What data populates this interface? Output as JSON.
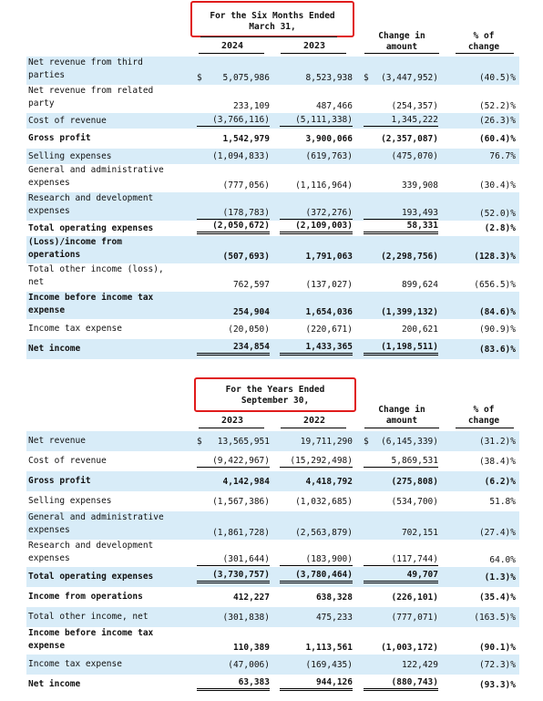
{
  "section1": {
    "period_line1": "For the Six Months Ended",
    "period_line2": "March 31,",
    "year1": "2024",
    "year2": "2023",
    "change_line1": "Change in",
    "change_line2": "amount",
    "pct_line1": "% of",
    "pct_line2": "change",
    "rows": [
      {
        "label": "Net revenue from third\nparties",
        "v1": "5,075,986",
        "v2": "8,523,938",
        "v3": "(3,447,952)",
        "v4": "(40.5)%",
        "currency": "$",
        "currency3": "$",
        "bold": false,
        "shade": true
      },
      {
        "label": "Net revenue from related\nparty",
        "v1": "233,109",
        "v2": "487,466",
        "v3": "(254,357)",
        "v4": "(52.2)%",
        "bold": false,
        "shade": false
      },
      {
        "label": "Cost of revenue",
        "v1": "(3,766,116)",
        "v2": "(5,111,338)",
        "v3": "1,345,222",
        "v4": "(26.3)%",
        "bold": false,
        "shade": true
      },
      {
        "label": "Gross profit",
        "v1": "1,542,979",
        "v2": "3,900,066",
        "v3": "(2,357,087)",
        "v4": "(60.4)%",
        "bold": true,
        "shade": false
      },
      {
        "label": "Selling expenses",
        "v1": "(1,094,833)",
        "v2": "(619,763)",
        "v3": "(475,070)",
        "v4": "76.7%",
        "bold": false,
        "shade": true
      },
      {
        "label": "General and administrative\nexpenses",
        "v1": "(777,056)",
        "v2": "(1,116,964)",
        "v3": "339,908",
        "v4": "(30.4)%",
        "bold": false,
        "shade": false
      },
      {
        "label": "Research and development\nexpenses",
        "v1": "(178,783)",
        "v2": "(372,276)",
        "v3": "193,493",
        "v4": "(52.0)%",
        "bold": false,
        "shade": true
      },
      {
        "label": "Total operating expenses",
        "v1": "(2,050,672)",
        "v2": "(2,109,003)",
        "v3": "58,331",
        "v4": "(2.8)%",
        "bold": true,
        "shade": false
      },
      {
        "label": "(Loss)/income from\noperations",
        "v1": "(507,693)",
        "v2": "1,791,063",
        "v3": "(2,298,756)",
        "v4": "(128.3)%",
        "bold": true,
        "shade": true
      },
      {
        "label": "Total other income (loss),\nnet",
        "v1": "762,597",
        "v2": "(137,027)",
        "v3": "899,624",
        "v4": "(656.5)%",
        "bold": false,
        "shade": false
      },
      {
        "label": "Income before income tax\nexpense",
        "v1": "254,904",
        "v2": "1,654,036",
        "v3": "(1,399,132)",
        "v4": "(84.6)%",
        "bold": true,
        "shade": true
      },
      {
        "label": "Income tax expense",
        "v1": "(20,050)",
        "v2": "(220,671)",
        "v3": "200,621",
        "v4": "(90.9)%",
        "bold": false,
        "shade": false
      },
      {
        "label": "Net income",
        "v1": "234,854",
        "v2": "1,433,365",
        "v3": "(1,198,511)",
        "v4": "(83.6)%",
        "bold": true,
        "shade": true
      }
    ]
  },
  "section2": {
    "period_line1": "For the  Years Ended",
    "period_line2": "September  30,",
    "year1": "2023",
    "year2": "2022",
    "change_line1": "Change in",
    "change_line2": "amount",
    "pct_line1": "% of",
    "pct_line2": "change",
    "rows": [
      {
        "label": "Net revenue",
        "v1": "13,565,951",
        "v2": "19,711,290",
        "v3": "(6,145,339)",
        "v4": "(31.2)%",
        "currency": "$",
        "currency3": "$",
        "bold": false,
        "shade": true
      },
      {
        "label": "Cost of revenue",
        "v1": "(9,422,967)",
        "v2": "(15,292,498)",
        "v3": "5,869,531",
        "v4": "(38.4)%",
        "bold": false,
        "shade": false
      },
      {
        "label": "Gross profit",
        "v1": "4,142,984",
        "v2": "4,418,792",
        "v3": "(275,808)",
        "v4": "(6.2)%",
        "bold": true,
        "shade": true
      },
      {
        "label": "Selling expenses",
        "v1": "(1,567,386)",
        "v2": "(1,032,685)",
        "v3": "(534,700)",
        "v4": "51.8%",
        "bold": false,
        "shade": false
      },
      {
        "label": "General and administrative\nexpenses",
        "v1": "(1,861,728)",
        "v2": "(2,563,879)",
        "v3": "702,151",
        "v4": "(27.4)%",
        "bold": false,
        "shade": true
      },
      {
        "label": "Research and development\nexpenses",
        "v1": "(301,644)",
        "v2": "(183,900)",
        "v3": "(117,744)",
        "v4": "64.0%",
        "bold": false,
        "shade": false
      },
      {
        "label": "Total operating expenses",
        "v1": "(3,730,757)",
        "v2": "(3,780,464)",
        "v3": "49,707",
        "v4": "(1.3)%",
        "bold": true,
        "shade": true
      },
      {
        "label": "Income from operations",
        "v1": "412,227",
        "v2": "638,328",
        "v3": "(226,101)",
        "v4": "(35.4)%",
        "bold": true,
        "shade": false
      },
      {
        "label": "Total other income, net",
        "v1": "(301,838)",
        "v2": "475,233",
        "v3": "(777,071)",
        "v4": "(163.5)%",
        "bold": false,
        "shade": true
      },
      {
        "label": "Income before income tax\nexpense",
        "v1": "110,389",
        "v2": "1,113,561",
        "v3": "(1,003,172)",
        "v4": "(90.1)%",
        "bold": true,
        "shade": false
      },
      {
        "label": "Income tax expense",
        "v1": "(47,006)",
        "v2": "(169,435)",
        "v3": "122,429",
        "v4": "(72.3)%",
        "bold": false,
        "shade": true
      },
      {
        "label": "Net income",
        "v1": "63,383",
        "v2": "944,126",
        "v3": "(880,743)",
        "v4": "(93.3)%",
        "bold": true,
        "shade": false
      }
    ]
  }
}
